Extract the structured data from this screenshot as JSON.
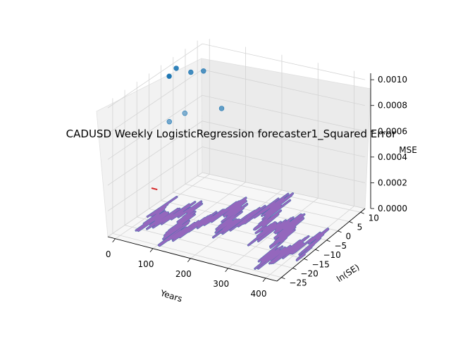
{
  "chart_data": {
    "type": "scatter",
    "title": "CADUSD Weekly LogisticRegression forecaster1_Squared Error",
    "xlabel": "Years",
    "ylabel": "ln(SE)",
    "zlabel": "MSE",
    "x_ticks": [
      "0",
      "100",
      "200",
      "300",
      "400"
    ],
    "y_ticks": [
      "−25",
      "−20",
      "−15",
      "−10",
      "−5",
      "0",
      "5",
      "10"
    ],
    "z_ticks": [
      "0.0000",
      "0.0002",
      "0.0004",
      "0.0006",
      "0.0008",
      "0.0010"
    ],
    "xlim": [
      -20,
      430
    ],
    "ylim": [
      -27,
      12
    ],
    "zlim": [
      0,
      0.00105
    ],
    "grid": true,
    "projection": "3d",
    "mse_points": [
      {
        "x": 2,
        "y": -5,
        "z": 0.00098
      },
      {
        "x": 8,
        "y": -3,
        "z": 0.00102
      },
      {
        "x": 15,
        "y": 2,
        "z": 0.00093
      },
      {
        "x": 30,
        "y": 5,
        "z": 0.00091
      },
      {
        "x": 60,
        "y": 8,
        "z": 0.0006
      },
      {
        "x": 22,
        "y": -8,
        "z": 0.00068
      },
      {
        "x": 25,
        "y": -2,
        "z": 0.00067
      }
    ],
    "marker_segment": {
      "x": [
        0,
        8
      ],
      "y": [
        -12,
        -12
      ],
      "z": [
        0.0002,
        0.0002
      ],
      "color": "#d62728"
    },
    "se_series_color": "#9467bd",
    "se_series_edge": "#4c72b0",
    "point_color": "#1f77b4"
  }
}
